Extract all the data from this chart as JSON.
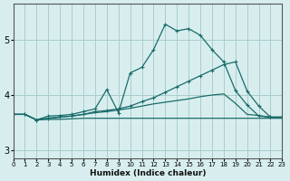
{
  "xlabel": "Humidex (Indice chaleur)",
  "bg_color": "#d8eeee",
  "grid_color": "#aacccc",
  "line_color": "#1a6b6b",
  "xlim": [
    0,
    23
  ],
  "ylim": [
    2.85,
    5.65
  ],
  "yticks": [
    3,
    4,
    5
  ],
  "xticks": [
    0,
    1,
    2,
    3,
    4,
    5,
    6,
    7,
    8,
    9,
    10,
    11,
    12,
    13,
    14,
    15,
    16,
    17,
    18,
    19,
    20,
    21,
    22,
    23
  ],
  "line1_y": [
    3.65,
    3.65,
    3.55,
    3.62,
    3.63,
    3.65,
    3.7,
    3.75,
    4.1,
    3.68,
    4.4,
    4.5,
    4.82,
    5.28,
    5.16,
    5.2,
    5.08,
    4.82,
    4.6,
    4.08,
    3.82,
    3.62,
    3.6,
    3.6
  ],
  "line2_y": [
    3.65,
    3.65,
    3.55,
    3.58,
    3.6,
    3.62,
    3.65,
    3.7,
    3.72,
    3.75,
    3.8,
    3.88,
    3.95,
    4.05,
    4.15,
    4.25,
    4.35,
    4.45,
    4.55,
    4.6,
    4.07,
    3.8,
    3.6,
    3.6
  ],
  "line3_y": [
    3.65,
    3.65,
    3.55,
    3.58,
    3.6,
    3.62,
    3.65,
    3.68,
    3.7,
    3.73,
    3.76,
    3.8,
    3.84,
    3.87,
    3.9,
    3.93,
    3.97,
    4.0,
    4.02,
    3.85,
    3.65,
    3.63,
    3.6,
    3.6
  ],
  "line4_y": [
    3.65,
    3.65,
    3.55,
    3.56,
    3.56,
    3.57,
    3.58,
    3.58,
    3.58,
    3.58,
    3.58,
    3.58,
    3.58,
    3.58,
    3.58,
    3.58,
    3.58,
    3.58,
    3.58,
    3.58,
    3.58,
    3.58,
    3.58,
    3.58
  ]
}
